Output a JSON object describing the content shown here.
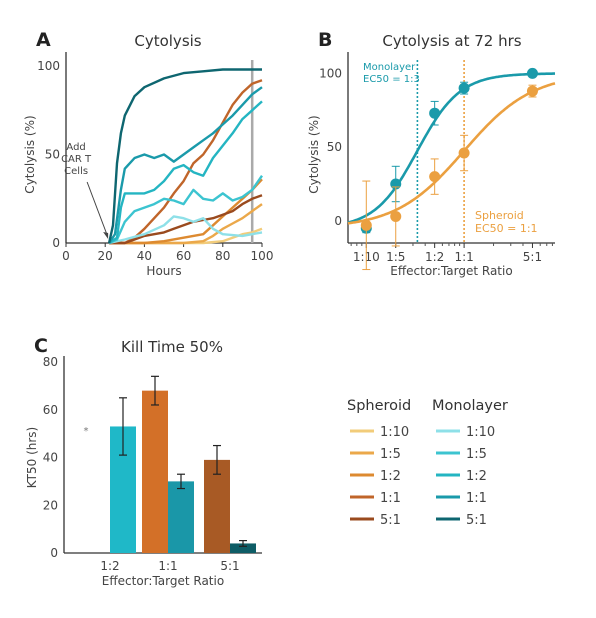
{
  "chart_data": [
    {
      "panel": "A",
      "type": "line",
      "title": "Cytolysis",
      "xlabel": "Hours",
      "ylabel": "Cytolysis (%)",
      "xlim": [
        0,
        100
      ],
      "ylim": [
        0,
        100
      ],
      "xticks": [
        0,
        20,
        40,
        60,
        80,
        100
      ],
      "yticks": [
        0,
        50,
        100
      ],
      "annotation": [
        "Add",
        "CAR T",
        "Cells"
      ],
      "annotation_x": 22,
      "vline_x": 95,
      "series": [
        {
          "group": "Monolayer",
          "ratio": "5:1",
          "color": "#0e6670",
          "points": [
            [
              22,
              0
            ],
            [
              24,
              10
            ],
            [
              26,
              45
            ],
            [
              28,
              62
            ],
            [
              30,
              72
            ],
            [
              35,
              83
            ],
            [
              40,
              88
            ],
            [
              50,
              93
            ],
            [
              60,
              96
            ],
            [
              70,
              97
            ],
            [
              80,
              98
            ],
            [
              90,
              98
            ],
            [
              100,
              98
            ]
          ]
        },
        {
          "group": "Monolayer",
          "ratio": "1:1",
          "color": "#1a9aaa",
          "points": [
            [
              22,
              0
            ],
            [
              25,
              5
            ],
            [
              28,
              30
            ],
            [
              30,
              42
            ],
            [
              35,
              48
            ],
            [
              40,
              50
            ],
            [
              45,
              48
            ],
            [
              50,
              50
            ],
            [
              55,
              46
            ],
            [
              60,
              50
            ],
            [
              65,
              54
            ],
            [
              70,
              58
            ],
            [
              75,
              62
            ],
            [
              80,
              67
            ],
            [
              85,
              72
            ],
            [
              90,
              78
            ],
            [
              95,
              84
            ],
            [
              100,
              88
            ]
          ]
        },
        {
          "group": "Monolayer",
          "ratio": "1:2",
          "color": "#24b5c2",
          "points": [
            [
              22,
              0
            ],
            [
              26,
              3
            ],
            [
              28,
              20
            ],
            [
              30,
              28
            ],
            [
              35,
              28
            ],
            [
              40,
              28
            ],
            [
              45,
              30
            ],
            [
              50,
              35
            ],
            [
              55,
              42
            ],
            [
              60,
              44
            ],
            [
              65,
              40
            ],
            [
              70,
              38
            ],
            [
              75,
              48
            ],
            [
              80,
              55
            ],
            [
              85,
              62
            ],
            [
              90,
              70
            ],
            [
              95,
              75
            ],
            [
              100,
              80
            ]
          ]
        },
        {
          "group": "Monolayer",
          "ratio": "1:5",
          "color": "#3cc4d0",
          "points": [
            [
              22,
              0
            ],
            [
              26,
              2
            ],
            [
              30,
              12
            ],
            [
              35,
              18
            ],
            [
              40,
              20
            ],
            [
              45,
              22
            ],
            [
              50,
              25
            ],
            [
              55,
              24
            ],
            [
              60,
              22
            ],
            [
              65,
              30
            ],
            [
              70,
              25
            ],
            [
              75,
              24
            ],
            [
              80,
              28
            ],
            [
              85,
              24
            ],
            [
              90,
              26
            ],
            [
              95,
              30
            ],
            [
              100,
              38
            ]
          ]
        },
        {
          "group": "Monolayer",
          "ratio": "1:10",
          "color": "#8ee0e8",
          "points": [
            [
              22,
              0
            ],
            [
              30,
              2
            ],
            [
              40,
              5
            ],
            [
              50,
              10
            ],
            [
              55,
              15
            ],
            [
              60,
              14
            ],
            [
              65,
              12
            ],
            [
              70,
              14
            ],
            [
              75,
              8
            ],
            [
              80,
              5
            ],
            [
              90,
              4
            ],
            [
              100,
              6
            ]
          ]
        },
        {
          "group": "Spheroid",
          "ratio": "5:1",
          "color": "#9a4a1e",
          "points": [
            [
              22,
              0
            ],
            [
              30,
              0
            ],
            [
              35,
              2
            ],
            [
              40,
              4
            ],
            [
              45,
              5
            ],
            [
              50,
              6
            ],
            [
              55,
              8
            ],
            [
              60,
              10
            ],
            [
              65,
              12
            ],
            [
              70,
              13
            ],
            [
              75,
              14
            ],
            [
              80,
              16
            ],
            [
              85,
              18
            ],
            [
              90,
              22
            ],
            [
              95,
              25
            ],
            [
              100,
              27
            ]
          ]
        },
        {
          "group": "Spheroid",
          "ratio": "1:1",
          "color": "#c0652a",
          "points": [
            [
              22,
              0
            ],
            [
              30,
              0
            ],
            [
              35,
              3
            ],
            [
              40,
              8
            ],
            [
              45,
              14
            ],
            [
              50,
              20
            ],
            [
              55,
              28
            ],
            [
              60,
              35
            ],
            [
              65,
              45
            ],
            [
              70,
              50
            ],
            [
              75,
              58
            ],
            [
              80,
              68
            ],
            [
              85,
              78
            ],
            [
              90,
              85
            ],
            [
              95,
              90
            ],
            [
              100,
              92
            ]
          ]
        },
        {
          "group": "Spheroid",
          "ratio": "1:2",
          "color": "#dd8a30",
          "points": [
            [
              22,
              0
            ],
            [
              40,
              0
            ],
            [
              50,
              1
            ],
            [
              60,
              3
            ],
            [
              70,
              5
            ],
            [
              75,
              10
            ],
            [
              80,
              15
            ],
            [
              85,
              20
            ],
            [
              90,
              25
            ],
            [
              95,
              30
            ],
            [
              100,
              36
            ]
          ]
        },
        {
          "group": "Spheroid",
          "ratio": "1:5",
          "color": "#eba84a",
          "points": [
            [
              22,
              0
            ],
            [
              60,
              0
            ],
            [
              70,
              1
            ],
            [
              75,
              4
            ],
            [
              80,
              8
            ],
            [
              85,
              11
            ],
            [
              90,
              14
            ],
            [
              95,
              18
            ],
            [
              100,
              22
            ]
          ]
        },
        {
          "group": "Spheroid",
          "ratio": "1:10",
          "color": "#f2cc7a",
          "points": [
            [
              22,
              0
            ],
            [
              70,
              0
            ],
            [
              80,
              1
            ],
            [
              85,
              3
            ],
            [
              90,
              5
            ],
            [
              95,
              6
            ],
            [
              100,
              8
            ]
          ]
        }
      ]
    },
    {
      "panel": "B",
      "type": "scatter",
      "title": "Cytolysis at 72 hrs",
      "xlabel": "Effector:Target Ratio",
      "ylabel": "Cytolysis (%)",
      "xscale": "log",
      "xticks": [
        {
          "label": "1:10",
          "value": 0.1
        },
        {
          "label": "1:5",
          "value": 0.2
        },
        {
          "label": "1:2",
          "value": 0.5
        },
        {
          "label": "1:1",
          "value": 1
        },
        {
          "label": "5:1",
          "value": 5
        }
      ],
      "yticks": [
        0,
        50,
        100
      ],
      "ylim": [
        -15,
        105
      ],
      "annotations": {
        "monolayer": [
          "Monolayer",
          "EC50 = 1:3"
        ],
        "spheroid": [
          "Spheroid",
          "EC50 = 1:1"
        ]
      },
      "series": [
        {
          "name": "Monolayer",
          "color": "#1a9aaa",
          "ec50": 0.333,
          "x": [
            0.1,
            0.2,
            0.5,
            1,
            5
          ],
          "y": [
            -5,
            25,
            73,
            90,
            100
          ],
          "err": [
            3,
            12,
            8,
            4,
            2
          ],
          "fit": {
            "bottom": -5,
            "top": 100,
            "hill": 2.0
          }
        },
        {
          "name": "Spheroid",
          "color": "#eba040",
          "ec50": 1,
          "x": [
            0.1,
            0.2,
            0.5,
            1,
            5
          ],
          "y": [
            -3,
            3,
            30,
            46,
            88
          ],
          "err": [
            30,
            20,
            12,
            12,
            4
          ],
          "fit": {
            "bottom": -5,
            "top": 100,
            "hill": 1.25
          }
        }
      ]
    },
    {
      "panel": "C",
      "type": "bar",
      "title": "Kill Time 50%",
      "xlabel": "Effector:Target Ratio",
      "ylabel": "KT50 (hrs)",
      "ylim": [
        0,
        80
      ],
      "yticks": [
        0,
        20,
        40,
        60,
        80
      ],
      "categories": [
        "1:2",
        "1:1",
        "5:1"
      ],
      "star_note": "*",
      "bars": [
        {
          "category": "1:2",
          "group": "Spheroid",
          "value": null
        },
        {
          "category": "1:2",
          "group": "Monolayer",
          "value": 53,
          "err": 12,
          "color": "#1fb8c8"
        },
        {
          "category": "1:1",
          "group": "Spheroid",
          "value": 68,
          "err": 6,
          "color": "#d37028"
        },
        {
          "category": "1:1",
          "group": "Monolayer",
          "value": 30,
          "err": 3,
          "color": "#1a97a8"
        },
        {
          "category": "5:1",
          "group": "Spheroid",
          "value": 39,
          "err": 6,
          "color": "#a85a25"
        },
        {
          "category": "5:1",
          "group": "Monolayer",
          "value": 4,
          "err": 1.2,
          "color": "#0e5d66"
        }
      ]
    }
  ],
  "legend": {
    "headers": [
      "Spheroid",
      "Monolayer"
    ],
    "ratios": [
      "1:10",
      "1:5",
      "1:2",
      "1:1",
      "5:1"
    ],
    "spheroid_colors": [
      "#f2cc7a",
      "#eba84a",
      "#dd8a30",
      "#c0652a",
      "#9a4a1e"
    ],
    "monolayer_colors": [
      "#8ee0e8",
      "#3cc4d0",
      "#24b5c2",
      "#1a9aaa",
      "#0e6670"
    ]
  },
  "panel_labels": [
    "A",
    "B",
    "C"
  ]
}
